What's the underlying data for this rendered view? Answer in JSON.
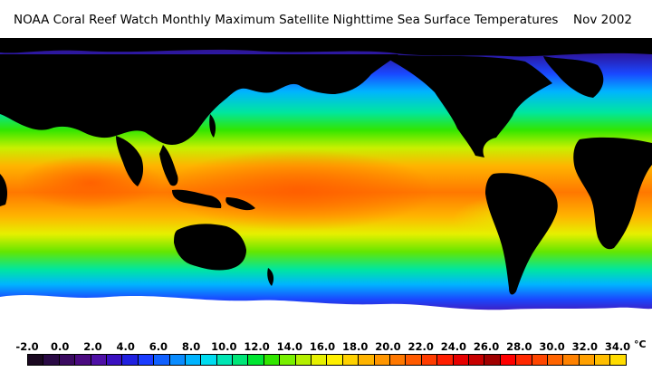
{
  "header": {
    "title": "NOAA Coral Reef Watch Monthly Maximum Satellite Nighttime Sea Surface Temperatures",
    "date": "Nov 2002"
  },
  "map": {
    "land_color": "#000000",
    "ice_color": "#ffffff"
  },
  "legend": {
    "tick_labels": [
      "-2.0",
      "0.0",
      "2.0",
      "4.0",
      "6.0",
      "8.0",
      "10.0",
      "12.0",
      "14.0",
      "16.0",
      "18.0",
      "20.0",
      "22.0",
      "24.0",
      "26.0",
      "28.0",
      "30.0",
      "32.0",
      "34.0"
    ],
    "unit": "°C",
    "swatch_colors": [
      "#1a0820",
      "#2a0a45",
      "#3a0a60",
      "#4a0a80",
      "#4e10a6",
      "#3a10c0",
      "#2020e0",
      "#1a3cff",
      "#1060ff",
      "#0a8cff",
      "#00b4ff",
      "#00dcf0",
      "#00e6b4",
      "#00e678",
      "#00e632",
      "#32e600",
      "#78f000",
      "#b4f000",
      "#e6f000",
      "#fff000",
      "#ffd200",
      "#ffb400",
      "#ff9600",
      "#ff7800",
      "#ff5a00",
      "#ff3c00",
      "#ff1e00",
      "#e60000",
      "#c80000",
      "#a00000",
      "#ff0000",
      "#ff2800",
      "#ff4600",
      "#ff6400",
      "#ff8200",
      "#ffa000",
      "#ffbe00",
      "#ffdc00"
    ]
  }
}
